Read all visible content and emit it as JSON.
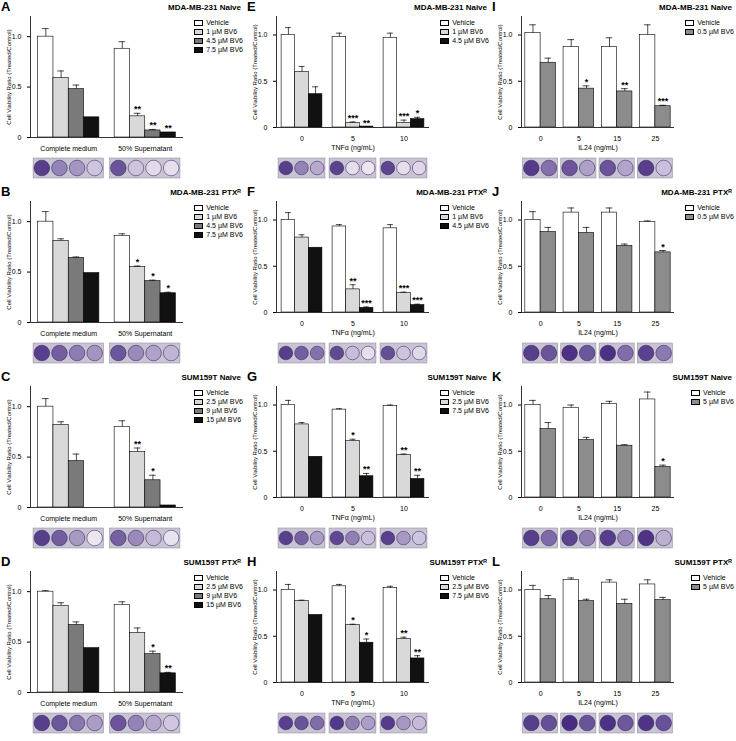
{
  "chart_data": [
    {
      "type": "bar",
      "panel_label": "A",
      "title": "MDA-MB-231 Naive",
      "y_label": "Cell Viability Ratio (Treated/Control)",
      "categories": [
        "Complete medium",
        "50% Supernatant"
      ],
      "ylim": [
        0,
        1.2
      ],
      "yticks": [
        0,
        0.5,
        {
          "value": 1,
          "label": "1.0"
        }
      ],
      "legend": "right",
      "series": [
        {
          "name": "Vehicle",
          "color": "#ffffff",
          "values": [
            1.0,
            0.88
          ],
          "errors": [
            0.08,
            0.07
          ],
          "significance": [
            null,
            null
          ]
        },
        {
          "name": "1 µM BV6",
          "color": "#d9d9d9",
          "values": [
            0.59,
            0.21
          ],
          "errors": [
            0.07,
            0.03
          ],
          "significance": [
            null,
            "**"
          ]
        },
        {
          "name": "4.5 µM BV6",
          "color": "#7a7a7a",
          "values": [
            0.48,
            0.07
          ],
          "errors": [
            0.04,
            0.01
          ],
          "significance": [
            null,
            "**"
          ]
        },
        {
          "name": "7.5 µM BV6",
          "color": "#111111",
          "values": [
            0.2,
            0.05
          ],
          "errors": [
            null,
            null
          ],
          "significance": [
            null,
            "**"
          ]
        }
      ]
    },
    {
      "type": "bar",
      "panel_label": "E",
      "title": "MDA-MB-231 Naive",
      "y_label": "Cell Viability Ratio (Treated/Control)",
      "x_label": "TNFα (ng/mL)",
      "categories": [
        "0",
        "5",
        "10"
      ],
      "ylim": [
        0,
        1.2
      ],
      "yticks": [
        0,
        0.5,
        {
          "value": 1,
          "label": "1.0"
        }
      ],
      "legend": "right",
      "series": [
        {
          "name": "Vehicle",
          "color": "#ffffff",
          "values": [
            1.0,
            0.98,
            0.97
          ],
          "errors": [
            0.08,
            0.04,
            0.05
          ],
          "significance": [
            null,
            null,
            null
          ]
        },
        {
          "name": "1 µM BV6",
          "color": "#d9d9d9",
          "values": [
            0.6,
            0.05,
            0.05
          ],
          "errors": [
            0.06,
            0.01,
            0.03
          ],
          "significance": [
            null,
            "***",
            "***"
          ]
        },
        {
          "name": "4.5 µM BV6",
          "color": "#111111",
          "values": [
            0.36,
            0.01,
            0.09
          ],
          "errors": [
            0.08,
            null,
            0.02
          ],
          "significance": [
            null,
            "**",
            "*"
          ]
        }
      ]
    },
    {
      "type": "bar",
      "panel_label": "I",
      "title": "MDA-MB-231 Naive",
      "y_label": "Cell Viability Ratio (Treated/Control)",
      "x_label": "IL24 (ng/mL)",
      "categories": [
        "0",
        "5",
        "15",
        "25"
      ],
      "ylim": [
        0,
        1.2
      ],
      "yticks": [
        0,
        0.5,
        {
          "value": 1,
          "label": "1.0"
        }
      ],
      "legend": "right",
      "series": [
        {
          "name": "Vehicle",
          "color": "#ffffff",
          "values": [
            1.02,
            0.87,
            0.87,
            1.0
          ],
          "errors": [
            0.09,
            0.08,
            0.1,
            0.11
          ],
          "significance": [
            null,
            null,
            null,
            null
          ]
        },
        {
          "name": "0.5 µM BV6",
          "color": "#8c8c8c",
          "values": [
            0.7,
            0.42,
            0.39,
            0.23
          ],
          "errors": [
            0.05,
            0.03,
            0.03,
            0.01
          ],
          "significance": [
            null,
            "*",
            "**",
            "***"
          ]
        }
      ]
    },
    {
      "type": "bar",
      "panel_label": "B",
      "title": "MDA-MB-231 PTXᴿ",
      "y_label": "Cell Viability Ratio (Treated/Control)",
      "categories": [
        "Complete medium",
        "50% Supernatant"
      ],
      "ylim": [
        0,
        1.2
      ],
      "yticks": [
        0,
        0.5,
        {
          "value": 1,
          "label": "1.0"
        }
      ],
      "legend": "right",
      "series": [
        {
          "name": "Vehicle",
          "color": "#ffffff",
          "values": [
            1.0,
            0.86
          ],
          "errors": [
            0.1,
            0.02
          ],
          "significance": [
            null,
            null
          ]
        },
        {
          "name": "1 µM BV6",
          "color": "#d9d9d9",
          "values": [
            0.81,
            0.55
          ],
          "errors": [
            0.02,
            0.01
          ],
          "significance": [
            null,
            "*"
          ]
        },
        {
          "name": "4.5 µM BV6",
          "color": "#7a7a7a",
          "values": [
            0.64,
            0.41
          ],
          "errors": [
            0.01,
            0.01
          ],
          "significance": [
            null,
            "*"
          ]
        },
        {
          "name": "7.5 µM BV6",
          "color": "#111111",
          "values": [
            0.49,
            0.29
          ],
          "errors": [
            null,
            0.01
          ],
          "significance": [
            null,
            "*"
          ]
        }
      ]
    },
    {
      "type": "bar",
      "panel_label": "F",
      "title": "MDA-MB-231 PTXᴿ",
      "y_label": "Cell Viability Ratio (Treated/Control)",
      "x_label": "TNFα (ng/mL)",
      "categories": [
        "0",
        "5",
        "10"
      ],
      "ylim": [
        0,
        1.2
      ],
      "yticks": [
        0,
        0.5,
        {
          "value": 1,
          "label": "1.0"
        }
      ],
      "legend": "right",
      "series": [
        {
          "name": "Vehicle",
          "color": "#ffffff",
          "values": [
            1.0,
            0.93,
            0.91
          ],
          "errors": [
            0.08,
            0.02,
            0.04
          ],
          "significance": [
            null,
            null,
            null
          ]
        },
        {
          "name": "1 µM BV6",
          "color": "#d9d9d9",
          "values": [
            0.81,
            0.25,
            0.21
          ],
          "errors": [
            0.03,
            0.05,
            0.01
          ],
          "significance": [
            null,
            "**",
            "***"
          ]
        },
        {
          "name": "4.5 µM BV6",
          "color": "#111111",
          "values": [
            0.7,
            0.05,
            0.08
          ],
          "errors": [
            null,
            0.01,
            0.01
          ],
          "significance": [
            null,
            "***",
            "***"
          ]
        }
      ]
    },
    {
      "type": "bar",
      "panel_label": "J",
      "title": "MDA-MB-231 PTXᴿ",
      "y_label": "Cell Viability Ratio (Treated/Control)",
      "x_label": "IL24 (ng/mL)",
      "categories": [
        "0",
        "5",
        "15",
        "25"
      ],
      "ylim": [
        0,
        1.2
      ],
      "yticks": [
        0,
        0.5,
        {
          "value": 1,
          "label": "1.0"
        }
      ],
      "legend": "right",
      "series": [
        {
          "name": "Vehicle",
          "color": "#ffffff",
          "values": [
            1.0,
            1.08,
            1.08,
            0.98
          ],
          "errors": [
            0.09,
            0.05,
            0.05,
            0.01
          ],
          "significance": [
            null,
            null,
            null,
            null
          ]
        },
        {
          "name": "0.5 µM BV6",
          "color": "#8c8c8c",
          "values": [
            0.87,
            0.86,
            0.72,
            0.65
          ],
          "errors": [
            0.05,
            0.06,
            0.02,
            0.02
          ],
          "significance": [
            null,
            null,
            null,
            "*"
          ]
        }
      ]
    },
    {
      "type": "bar",
      "panel_label": "C",
      "title": "SUM159T Naive",
      "y_label": "Cell Viability Ratio (Treated/Control)",
      "categories": [
        "Complete medium",
        "50% Supernatant"
      ],
      "ylim": [
        0,
        1.2
      ],
      "yticks": [
        0,
        0.5,
        {
          "value": 1,
          "label": "1.0"
        }
      ],
      "legend": "right",
      "series": [
        {
          "name": "Vehicle",
          "color": "#ffffff",
          "values": [
            1.0,
            0.8
          ],
          "errors": [
            0.08,
            0.06
          ],
          "significance": [
            null,
            null
          ]
        },
        {
          "name": "2.5 µM BV6",
          "color": "#d9d9d9",
          "values": [
            0.82,
            0.55
          ],
          "errors": [
            0.03,
            0.04
          ],
          "significance": [
            null,
            "**"
          ]
        },
        {
          "name": "9 µM BV6",
          "color": "#7a7a7a",
          "values": [
            0.46,
            0.27
          ],
          "errors": [
            0.07,
            0.05
          ],
          "significance": [
            null,
            "*"
          ]
        },
        {
          "name": "15 µM BV6",
          "color": "#111111",
          "values": [
            0.0,
            0.02
          ],
          "errors": [
            null,
            null
          ],
          "significance": [
            null,
            null
          ]
        }
      ]
    },
    {
      "type": "bar",
      "panel_label": "G",
      "title": "SUM159T Naive",
      "y_label": "Cell Viability Ratio (Treated/Control)",
      "x_label": "TNFα (ng/mL)",
      "categories": [
        "0",
        "5",
        "10"
      ],
      "ylim": [
        0,
        1.2
      ],
      "yticks": [
        0,
        0.5,
        {
          "value": 1,
          "label": "1.0"
        }
      ],
      "legend": "right",
      "series": [
        {
          "name": "Vehicle",
          "color": "#ffffff",
          "values": [
            1.0,
            0.95,
            0.99
          ],
          "errors": [
            0.05,
            0.01,
            0.01
          ],
          "significance": [
            null,
            null,
            null
          ]
        },
        {
          "name": "2.5 µM BV6",
          "color": "#d9d9d9",
          "values": [
            0.79,
            0.61,
            0.46
          ],
          "errors": [
            0.02,
            0.02,
            0.01
          ],
          "significance": [
            null,
            "*",
            "**"
          ]
        },
        {
          "name": "7.5 µM BV6",
          "color": "#111111",
          "values": [
            0.44,
            0.23,
            0.2
          ],
          "errors": [
            null,
            0.03,
            0.04
          ],
          "significance": [
            null,
            "**",
            "**"
          ]
        }
      ]
    },
    {
      "type": "bar",
      "panel_label": "K",
      "title": "SUM159T Naive",
      "y_label": "Cell Viability Ratio (Treated/Control)",
      "x_label": "IL24 (ng/mL)",
      "categories": [
        "0",
        "5",
        "15",
        "25"
      ],
      "ylim": [
        0,
        1.2
      ],
      "yticks": [
        0,
        0.5,
        {
          "value": 1,
          "label": "1.0"
        }
      ],
      "legend": "right",
      "series": [
        {
          "name": "Vehicle",
          "color": "#ffffff",
          "values": [
            1.0,
            0.97,
            1.01,
            1.06
          ],
          "errors": [
            0.05,
            0.03,
            0.03,
            0.08
          ],
          "significance": [
            null,
            null,
            null,
            null
          ]
        },
        {
          "name": "5 µM BV6",
          "color": "#8c8c8c",
          "values": [
            0.74,
            0.62,
            0.56,
            0.33
          ],
          "errors": [
            0.07,
            0.03,
            0.01,
            0.02
          ],
          "significance": [
            null,
            null,
            null,
            "*"
          ]
        }
      ]
    },
    {
      "type": "bar",
      "panel_label": "D",
      "title": "SUM159T PTXᴿ",
      "y_label": "Cell Viability Ratio (Treated/Control)",
      "categories": [
        "Complete medium",
        "50% Supernatant"
      ],
      "ylim": [
        0,
        1.2
      ],
      "yticks": [
        0,
        0.5,
        {
          "value": 1,
          "label": "1.0"
        }
      ],
      "legend": "right",
      "series": [
        {
          "name": "Vehicle",
          "color": "#ffffff",
          "values": [
            1.0,
            0.87
          ],
          "errors": [
            0.01,
            0.03
          ],
          "significance": [
            null,
            null
          ]
        },
        {
          "name": "2.5 µM BV6",
          "color": "#d9d9d9",
          "values": [
            0.86,
            0.59
          ],
          "errors": [
            0.03,
            0.05
          ],
          "significance": [
            null,
            null
          ]
        },
        {
          "name": "9 µM BV6",
          "color": "#7a7a7a",
          "values": [
            0.67,
            0.38
          ],
          "errors": [
            0.03,
            0.03
          ],
          "significance": [
            null,
            "*"
          ]
        },
        {
          "name": "15 µM BV6",
          "color": "#111111",
          "values": [
            0.44,
            0.19
          ],
          "errors": [
            null,
            0.01
          ],
          "significance": [
            null,
            "**"
          ]
        }
      ]
    },
    {
      "type": "bar",
      "panel_label": "H",
      "title": "SUM159T PTXᴿ",
      "y_label": "Cell Viability Ratio (Treated/Control)",
      "x_label": "TNFα (ng/mL)",
      "categories": [
        "0",
        "5",
        "10"
      ],
      "ylim": [
        0,
        1.2
      ],
      "yticks": [
        0,
        0.5,
        {
          "value": 1,
          "label": "1.0"
        }
      ],
      "legend": "right",
      "series": [
        {
          "name": "Vehicle",
          "color": "#ffffff",
          "values": [
            1.0,
            1.04,
            1.02
          ],
          "errors": [
            0.06,
            0.02,
            0.02
          ],
          "significance": [
            null,
            null,
            null
          ]
        },
        {
          "name": "2.5 µM BV6",
          "color": "#d9d9d9",
          "values": [
            0.88,
            0.62,
            0.47
          ],
          "errors": [
            0.01,
            0.01,
            0.02
          ],
          "significance": [
            null,
            "*",
            "**"
          ]
        },
        {
          "name": "7.5 µM BV6",
          "color": "#111111",
          "values": [
            0.73,
            0.43,
            0.26
          ],
          "errors": [
            null,
            0.04,
            0.03
          ],
          "significance": [
            null,
            "*",
            "**"
          ]
        }
      ]
    },
    {
      "type": "bar",
      "panel_label": "L",
      "title": "SUM159T PTXᴿ",
      "y_label": "Cell Viability Ratio (Treated/Control)",
      "x_label": "IL24 (ng/mL)",
      "categories": [
        "0",
        "5",
        "15",
        "25"
      ],
      "ylim": [
        0,
        1.2
      ],
      "yticks": [
        0,
        0.5,
        {
          "value": 1,
          "label": "1.0"
        }
      ],
      "legend": "right",
      "series": [
        {
          "name": "Vehicle",
          "color": "#ffffff",
          "values": [
            1.0,
            1.11,
            1.08,
            1.06
          ],
          "errors": [
            0.05,
            0.02,
            0.03,
            0.05
          ],
          "significance": [
            null,
            null,
            null,
            null
          ]
        },
        {
          "name": "5 µM BV6",
          "color": "#8c8c8c",
          "values": [
            0.9,
            0.88,
            0.85,
            0.89
          ],
          "errors": [
            0.04,
            0.02,
            0.05,
            0.03
          ],
          "significance": [
            null,
            null,
            null,
            null
          ]
        }
      ]
    }
  ]
}
